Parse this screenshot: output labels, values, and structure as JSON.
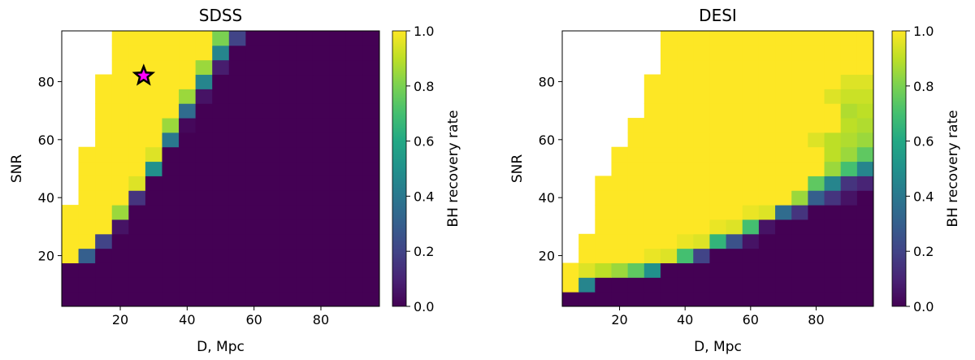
{
  "chart_data": [
    {
      "type": "heatmap",
      "title": "SDSS",
      "x_label": "D, Mpc",
      "y_label": "SNR",
      "colormap": "viridis",
      "x": [
        5,
        10,
        15,
        20,
        25,
        30,
        35,
        40,
        45,
        50,
        55,
        60,
        65,
        70,
        75,
        80,
        85,
        90,
        95
      ],
      "y": [
        5,
        10,
        15,
        20,
        25,
        30,
        35,
        40,
        45,
        50,
        55,
        60,
        65,
        70,
        75,
        80,
        85,
        90,
        95
      ],
      "xlim": [
        2.5,
        97.5
      ],
      "ylim": [
        2.5,
        97.5
      ],
      "xticks": [
        20,
        40,
        60,
        80
      ],
      "yticks": [
        20,
        40,
        60,
        80
      ],
      "values": [
        [
          0,
          0,
          0,
          0,
          0,
          0,
          0,
          0,
          0,
          0,
          0,
          0,
          0,
          0,
          0,
          0,
          0,
          0,
          0
        ],
        [
          0,
          0,
          0,
          0,
          0,
          0,
          0,
          0,
          0,
          0,
          0,
          0,
          0,
          0,
          0,
          0,
          0,
          0,
          0
        ],
        [
          0,
          0,
          0,
          0,
          0,
          0,
          0,
          0,
          0,
          0,
          0,
          0,
          0,
          0,
          0,
          0,
          0,
          0,
          0
        ],
        [
          1,
          0.3,
          0,
          0,
          0,
          0,
          0,
          0,
          0,
          0,
          0,
          0,
          0,
          0,
          0,
          0,
          0,
          0,
          0
        ],
        [
          1,
          1,
          0.2,
          0,
          0,
          0,
          0,
          0,
          0,
          0,
          0,
          0,
          0,
          0,
          0,
          0,
          0,
          0,
          0
        ],
        [
          1,
          1,
          1,
          0.05,
          0,
          0,
          0,
          0,
          0,
          0,
          0,
          0,
          0,
          0,
          0,
          0,
          0,
          0,
          0
        ],
        [
          1,
          1,
          1,
          0.85,
          0,
          0,
          0,
          0,
          0,
          0,
          0,
          0,
          0,
          0,
          0,
          0,
          0,
          0,
          0
        ],
        [
          null,
          1,
          1,
          1,
          0.15,
          0,
          0,
          0,
          0,
          0,
          0,
          0,
          0,
          0,
          0,
          0,
          0,
          0,
          0
        ],
        [
          null,
          1,
          1,
          1,
          0.95,
          0,
          0,
          0,
          0,
          0,
          0,
          0,
          0,
          0,
          0,
          0,
          0,
          0,
          0
        ],
        [
          null,
          1,
          1,
          1,
          1,
          0.5,
          0,
          0,
          0,
          0,
          0,
          0,
          0,
          0,
          0,
          0,
          0,
          0,
          0
        ],
        [
          null,
          1,
          1,
          1,
          1,
          0.95,
          0,
          0,
          0,
          0,
          0,
          0,
          0,
          0,
          0,
          0,
          0,
          0,
          0
        ],
        [
          null,
          null,
          1,
          1,
          1,
          1,
          0.4,
          0,
          0,
          0,
          0,
          0,
          0,
          0,
          0,
          0,
          0,
          0,
          0
        ],
        [
          null,
          null,
          1,
          1,
          1,
          1,
          0.85,
          0.02,
          0,
          0,
          0,
          0,
          0,
          0,
          0,
          0,
          0,
          0,
          0
        ],
        [
          null,
          null,
          1,
          1,
          1,
          1,
          1,
          0.35,
          0,
          0,
          0,
          0,
          0,
          0,
          0,
          0,
          0,
          0,
          0
        ],
        [
          null,
          null,
          1,
          1,
          1,
          1,
          1,
          0.85,
          0.05,
          0,
          0,
          0,
          0,
          0,
          0,
          0,
          0,
          0,
          0
        ],
        [
          null,
          null,
          1,
          1,
          1,
          1,
          1,
          1,
          0.45,
          0,
          0,
          0,
          0,
          0,
          0,
          0,
          0,
          0,
          0
        ],
        [
          null,
          null,
          null,
          1,
          1,
          1,
          1,
          1,
          0.85,
          0.08,
          0,
          0,
          0,
          0,
          0,
          0,
          0,
          0,
          0
        ],
        [
          null,
          null,
          null,
          1,
          1,
          1,
          1,
          1,
          1,
          0.45,
          0,
          0,
          0,
          0,
          0,
          0,
          0,
          0,
          0
        ],
        [
          null,
          null,
          null,
          1,
          1,
          1,
          1,
          1,
          1,
          0.8,
          0.2,
          0,
          0,
          0,
          0,
          0,
          0,
          0,
          0
        ]
      ],
      "marker": {
        "x": 27,
        "y": 82,
        "color": "#ff00ff"
      },
      "colorbar": {
        "label": "BH recovery rate",
        "lim": [
          0,
          1
        ],
        "ticks": [
          {
            "value": 0,
            "label": "0.0"
          },
          0.2,
          0.4,
          0.6,
          0.8,
          {
            "value": 1,
            "label": "1.0"
          }
        ]
      }
    },
    {
      "type": "heatmap",
      "title": "DESI",
      "x_label": "D, Mpc",
      "y_label": "SNR",
      "colormap": "viridis",
      "x": [
        5,
        10,
        15,
        20,
        25,
        30,
        35,
        40,
        45,
        50,
        55,
        60,
        65,
        70,
        75,
        80,
        85,
        90,
        95
      ],
      "y": [
        5,
        10,
        15,
        20,
        25,
        30,
        35,
        40,
        45,
        50,
        55,
        60,
        65,
        70,
        75,
        80,
        85,
        90,
        95
      ],
      "xlim": [
        2.5,
        97.5
      ],
      "ylim": [
        2.5,
        97.5
      ],
      "xticks": [
        20,
        40,
        60,
        80
      ],
      "yticks": [
        20,
        40,
        60,
        80
      ],
      "values": [
        [
          0,
          0,
          0,
          0,
          0,
          0,
          0,
          0,
          0,
          0,
          0,
          0,
          0,
          0,
          0,
          0,
          0,
          0,
          0
        ],
        [
          1,
          0.45,
          0,
          0,
          0,
          0,
          0,
          0,
          0,
          0,
          0,
          0,
          0,
          0,
          0,
          0,
          0,
          0,
          0
        ],
        [
          1,
          0.95,
          0.9,
          0.85,
          0.75,
          0.5,
          0,
          0,
          0,
          0,
          0,
          0,
          0,
          0,
          0,
          0,
          0,
          0,
          0
        ],
        [
          null,
          1,
          1,
          1,
          1,
          0.97,
          0.95,
          0.7,
          0.2,
          0,
          0,
          0,
          0,
          0,
          0,
          0,
          0,
          0,
          0
        ],
        [
          null,
          1,
          1,
          1,
          1,
          1,
          1,
          0.97,
          0.95,
          0.65,
          0.25,
          0.05,
          0,
          0,
          0,
          0,
          0,
          0,
          0
        ],
        [
          null,
          null,
          1,
          1,
          1,
          1,
          1,
          1,
          1,
          0.97,
          0.95,
          0.7,
          0.05,
          0,
          0,
          0,
          0,
          0,
          0
        ],
        [
          null,
          null,
          1,
          1,
          1,
          1,
          1,
          1,
          1,
          1,
          1,
          0.97,
          0.95,
          0.35,
          0.15,
          0,
          0,
          0,
          0
        ],
        [
          null,
          null,
          1,
          1,
          1,
          1,
          1,
          1,
          1,
          1,
          1,
          1,
          1,
          1,
          0.85,
          0.3,
          0.15,
          0.05,
          0
        ],
        [
          null,
          null,
          1,
          1,
          1,
          1,
          1,
          1,
          1,
          1,
          1,
          1,
          1,
          1,
          1,
          0.75,
          0.45,
          0.15,
          0.1
        ],
        [
          null,
          null,
          null,
          1,
          1,
          1,
          1,
          1,
          1,
          1,
          1,
          1,
          1,
          1,
          1,
          1,
          0.85,
          0.7,
          0.45
        ],
        [
          null,
          null,
          null,
          1,
          1,
          1,
          1,
          1,
          1,
          1,
          1,
          1,
          1,
          1,
          1,
          1,
          0.9,
          0.85,
          0.75
        ],
        [
          null,
          null,
          null,
          null,
          1,
          1,
          1,
          1,
          1,
          1,
          1,
          1,
          1,
          1,
          1,
          0.95,
          0.9,
          0.88,
          0.85
        ],
        [
          null,
          null,
          null,
          null,
          1,
          1,
          1,
          1,
          1,
          1,
          1,
          1,
          1,
          1,
          1,
          1,
          1,
          0.9,
          0.88
        ],
        [
          null,
          null,
          null,
          null,
          null,
          1,
          1,
          1,
          1,
          1,
          1,
          1,
          1,
          1,
          1,
          1,
          1,
          0.88,
          0.9
        ],
        [
          null,
          null,
          null,
          null,
          null,
          1,
          1,
          1,
          1,
          1,
          1,
          1,
          1,
          1,
          1,
          1,
          0.95,
          0.92,
          0.92
        ],
        [
          null,
          null,
          null,
          null,
          null,
          1,
          1,
          1,
          1,
          1,
          1,
          1,
          1,
          1,
          1,
          1,
          1,
          0.95,
          0.95
        ],
        [
          null,
          null,
          null,
          null,
          null,
          null,
          1,
          1,
          1,
          1,
          1,
          1,
          1,
          1,
          1,
          1,
          1,
          1,
          1
        ],
        [
          null,
          null,
          null,
          null,
          null,
          null,
          1,
          1,
          1,
          1,
          1,
          1,
          1,
          1,
          1,
          1,
          1,
          1,
          1
        ],
        [
          null,
          null,
          null,
          null,
          null,
          null,
          1,
          1,
          1,
          1,
          1,
          1,
          1,
          1,
          1,
          1,
          1,
          1,
          1
        ]
      ],
      "colorbar": {
        "label": "BH recovery rate",
        "lim": [
          0,
          1
        ],
        "ticks": [
          {
            "value": 0,
            "label": "0.0"
          },
          0.2,
          0.4,
          0.6,
          0.8,
          {
            "value": 1,
            "label": "1.0"
          }
        ]
      }
    }
  ]
}
